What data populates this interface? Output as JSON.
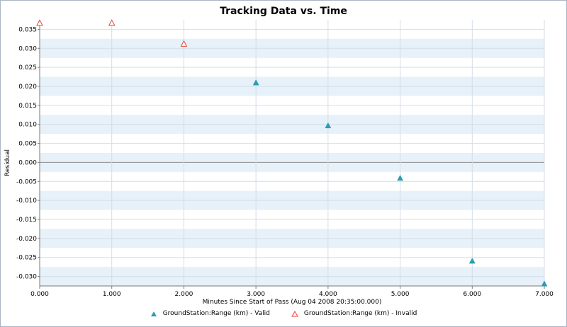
{
  "chart_data": {
    "type": "scatter",
    "title": "Tracking Data vs. Time",
    "xlabel": "Minutes Since Start of Pass (Aug 04 2008 20:35:00.000)",
    "ylabel": "Residual",
    "xlim": [
      0,
      7
    ],
    "ylim": [
      -0.0325,
      0.0375
    ],
    "x_ticks": [
      "0.000",
      "1.000",
      "2.000",
      "3.000",
      "4.000",
      "5.000",
      "6.000",
      "7.000"
    ],
    "y_ticks": [
      "0.035",
      "0.030",
      "0.025",
      "0.020",
      "0.015",
      "0.010",
      "0.005",
      "0.000",
      "-0.005",
      "-0.010",
      "-0.015",
      "-0.020",
      "-0.025",
      "-0.030"
    ],
    "grid": true,
    "legend_position": "bottom",
    "series": [
      {
        "name": "GroundStation:Range (km) - Valid",
        "marker": "filled-triangle",
        "color": "#2a9db0",
        "x": [
          3,
          4,
          5,
          6,
          7
        ],
        "y": [
          0.0209,
          0.0096,
          -0.0042,
          -0.026,
          -0.032
        ]
      },
      {
        "name": "GroundStation:Range (km) - Invalid",
        "marker": "open-triangle",
        "color": "#e8453c",
        "x": [
          0,
          1,
          2
        ],
        "y": [
          0.0366,
          0.0366,
          0.0311
        ]
      }
    ]
  }
}
